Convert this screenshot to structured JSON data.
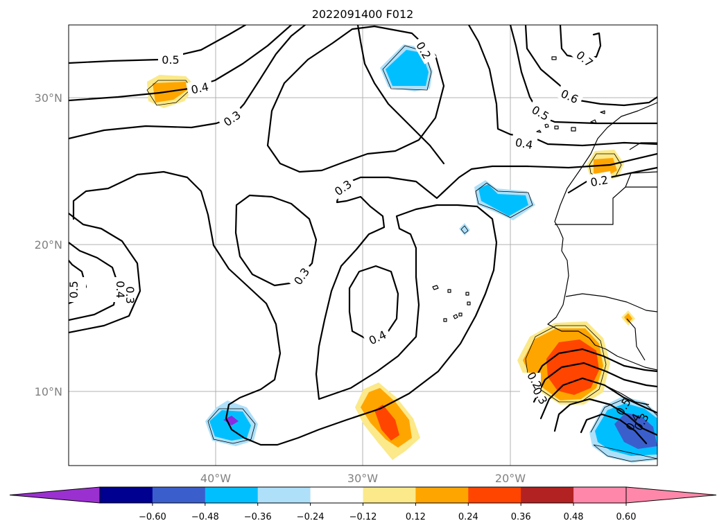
{
  "map": {
    "title": "2022091400 F012",
    "lat_labels": [
      "30°N",
      "20°N",
      "10°N"
    ],
    "lon_labels": [
      "40°W",
      "30°W",
      "20°W"
    ],
    "contour_labels": [
      "0.5",
      "0.4",
      "0.3",
      "0.3",
      "0.3",
      "0.3",
      "0.4",
      "0.2",
      "0.7",
      "0.6",
      "0.5",
      "0.4",
      "0.2",
      "0.5",
      "0.4",
      "0.3",
      "0.2",
      "0.3",
      "0.5",
      "0.4"
    ],
    "colorbar": {
      "ticks": [
        "−0.60",
        "−0.48",
        "−0.36",
        "−0.24",
        "−0.12",
        "0.12",
        "0.24",
        "0.36",
        "0.48",
        "0.60"
      ],
      "colors": [
        "#9b30d0",
        "#000090",
        "#3a5fcd",
        "#00bfff",
        "#aee0fa",
        "#ffffff",
        "#fbe98a",
        "#ffa500",
        "#ff4500",
        "#b22222",
        "#ff88aa",
        "#ff88aa"
      ]
    },
    "colors": {
      "neg_light": "#aee0fa",
      "neg_mid": "#00bfff",
      "neg_strong": "#3a5fcd",
      "neg_violet": "#8a2be2",
      "pos_light": "#fbe98a",
      "pos_mid": "#ffa500",
      "pos_strong": "#ff4500"
    }
  }
}
